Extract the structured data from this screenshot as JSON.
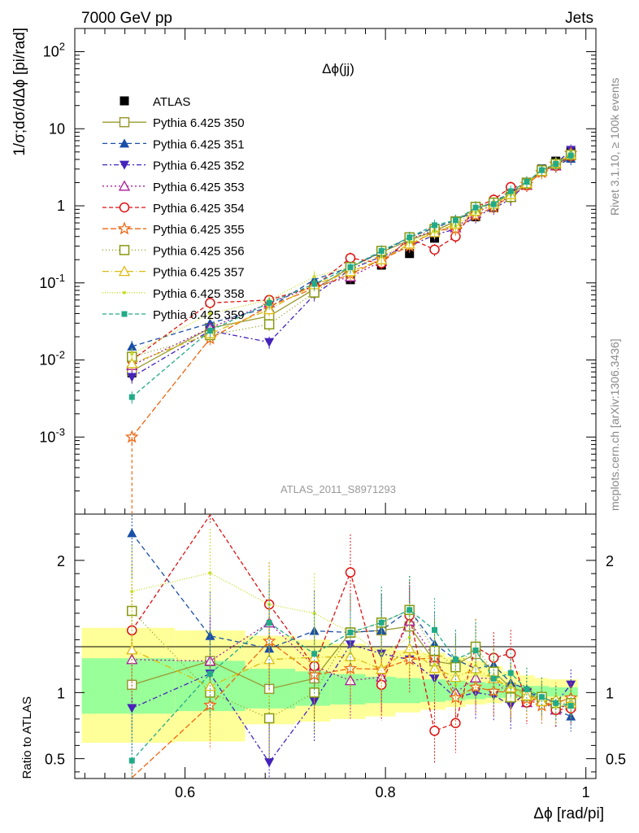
{
  "header": {
    "left": "7000 GeV pp",
    "right": "Jets",
    "plot_title": "Δϕ(jj)",
    "analysis_id": "ATLAS_2011_S8971293",
    "side_note_top": "Rivet 3.1.10, ≥ 100k events",
    "side_note_bottom": "mcplots.cern.ch [arXiv:1306.3436]"
  },
  "chart_data": [
    {
      "type": "line",
      "panel": "main",
      "ylabel": "1/σ;dσ/dΔϕ [pi/rad]",
      "yscale": "log",
      "ylim": [
        0.0001,
        200
      ],
      "xlim": [
        0.49,
        1.01
      ],
      "y_tick_labels": [
        "10^-3",
        "10^-2",
        "10^-1",
        "1",
        "10",
        "10^2"
      ],
      "x": [
        0.547,
        0.625,
        0.684,
        0.729,
        0.765,
        0.796,
        0.824,
        0.849,
        0.87,
        0.89,
        0.908,
        0.925,
        0.941,
        0.956,
        0.97,
        0.985
      ],
      "legend_position": "upper-left",
      "series": [
        {
          "name": "ATLAS",
          "color": "#000000",
          "marker": "square-filled",
          "dash": "none",
          "values": [
            0.0068,
            0.021,
            0.036,
            0.075,
            0.11,
            0.17,
            0.24,
            0.38,
            0.52,
            0.72,
            0.95,
            1.35,
            2.0,
            3.0,
            3.8,
            5.0
          ]
        },
        {
          "name": "Pythia 6.425 350",
          "color": "#999933",
          "marker": "square-open",
          "dash": "solid",
          "values": [
            0.0072,
            0.026,
            0.037,
            0.083,
            0.16,
            0.25,
            0.36,
            0.47,
            0.63,
            0.93,
            1.1,
            1.4,
            2.0,
            2.8,
            3.4,
            4.5
          ]
        },
        {
          "name": "Pythia 6.425 351",
          "color": "#1a4fa8",
          "marker": "triangle-up-filled",
          "dash": "6,4",
          "values": [
            0.015,
            0.03,
            0.048,
            0.11,
            0.16,
            0.25,
            0.39,
            0.52,
            0.65,
            0.85,
            1.15,
            1.45,
            2.05,
            2.8,
            3.3,
            4.1
          ]
        },
        {
          "name": "Pythia 6.425 352",
          "color": "#4422bb",
          "marker": "triangle-down-filled",
          "dash": "6,3,2,3",
          "values": [
            0.006,
            0.024,
            0.017,
            0.07,
            0.15,
            0.22,
            0.3,
            0.42,
            0.5,
            0.72,
            0.93,
            1.22,
            2.0,
            2.9,
            3.5,
            5.3
          ]
        },
        {
          "name": "Pythia 6.425 353",
          "color": "#aa1a99",
          "marker": "triangle-up-open",
          "dash": "2,3",
          "values": [
            0.0085,
            0.026,
            0.055,
            0.09,
            0.12,
            0.19,
            0.37,
            0.48,
            0.52,
            0.8,
            1.05,
            1.3,
            1.85,
            2.8,
            3.3,
            4.6
          ]
        },
        {
          "name": "Pythia 6.425 354",
          "color": "#dd1111",
          "marker": "circle-open",
          "dash": "5,3",
          "values": [
            0.01,
            0.055,
            0.06,
            0.09,
            0.21,
            0.18,
            0.38,
            0.27,
            0.4,
            0.97,
            1.2,
            1.75,
            1.85,
            2.9,
            3.3,
            4.4
          ]
        },
        {
          "name": "Pythia 6.425 355",
          "color": "#ee6611",
          "marker": "star-open",
          "dash": "7,3",
          "values": [
            0.001,
            0.019,
            0.05,
            0.085,
            0.13,
            0.2,
            0.3,
            0.48,
            0.5,
            0.75,
            0.96,
            1.35,
            1.9,
            2.7,
            3.5,
            4.8
          ]
        },
        {
          "name": "Pythia 6.425 356",
          "color": "#889911",
          "marker": "square-open",
          "dash": "1,3",
          "values": [
            0.011,
            0.021,
            0.029,
            0.075,
            0.16,
            0.26,
            0.39,
            0.5,
            0.62,
            0.97,
            1.1,
            1.3,
            1.95,
            2.9,
            3.5,
            4.6
          ]
        },
        {
          "name": "Pythia 6.425 357",
          "color": "#ddbb11",
          "marker": "triangle-up-open",
          "dash": "8,3,1,3",
          "values": [
            0.009,
            0.022,
            0.045,
            0.095,
            0.14,
            0.2,
            0.32,
            0.45,
            0.58,
            0.85,
            1.05,
            1.4,
            1.95,
            2.8,
            3.6,
            4.6
          ]
        },
        {
          "name": "Pythia 6.425 358",
          "color": "#c8dd22",
          "marker": "dot",
          "dash": "1,2",
          "values": [
            0.012,
            0.04,
            0.06,
            0.12,
            0.16,
            0.22,
            0.34,
            0.46,
            0.55,
            0.82,
            1.06,
            1.4,
            2.05,
            2.9,
            3.4,
            4.6
          ]
        },
        {
          "name": "Pythia 6.425 359",
          "color": "#22aa88",
          "marker": "square-filled-small",
          "dash": "5,3",
          "values": [
            0.0033,
            0.024,
            0.055,
            0.097,
            0.16,
            0.26,
            0.39,
            0.56,
            0.65,
            0.95,
            1.05,
            1.55,
            2.05,
            2.9,
            3.5,
            4.5
          ]
        }
      ]
    },
    {
      "type": "line",
      "panel": "ratio",
      "ylabel": "Ratio to ATLAS",
      "xlabel": "Δϕ [rad/pi]",
      "ylim": [
        0.35,
        2.35
      ],
      "xlim": [
        0.49,
        1.01
      ],
      "x_tick_labels": [
        "0.6",
        "0.8",
        "1"
      ],
      "y_tick_labels": [
        "0.5",
        "1",
        "2"
      ],
      "bands": {
        "edges": [
          0.497,
          0.59,
          0.66,
          0.71,
          0.745,
          0.78,
          0.81,
          0.835,
          0.86,
          0.88,
          0.9,
          0.917,
          0.934,
          0.949,
          0.963,
          0.978,
          0.992
        ],
        "green_upper": [
          1.26,
          1.24,
          1.18,
          1.16,
          1.14,
          1.12,
          1.11,
          1.1,
          1.09,
          1.08,
          1.07,
          1.06,
          1.05,
          1.05,
          1.04,
          1.04
        ],
        "green_lower": [
          0.84,
          0.86,
          0.88,
          0.9,
          0.91,
          0.92,
          0.92,
          0.93,
          0.94,
          0.95,
          0.96,
          0.96,
          0.97,
          0.97,
          0.97,
          0.97
        ],
        "yellow_upper": [
          1.49,
          1.47,
          1.43,
          1.4,
          1.37,
          1.34,
          1.32,
          1.3,
          1.27,
          1.24,
          1.2,
          1.16,
          1.13,
          1.11,
          1.1,
          1.1
        ],
        "yellow_lower": [
          0.62,
          0.63,
          0.76,
          0.78,
          0.8,
          0.82,
          0.85,
          0.87,
          0.89,
          0.91,
          0.92,
          0.93,
          0.94,
          0.95,
          0.95,
          0.95
        ]
      }
    }
  ]
}
